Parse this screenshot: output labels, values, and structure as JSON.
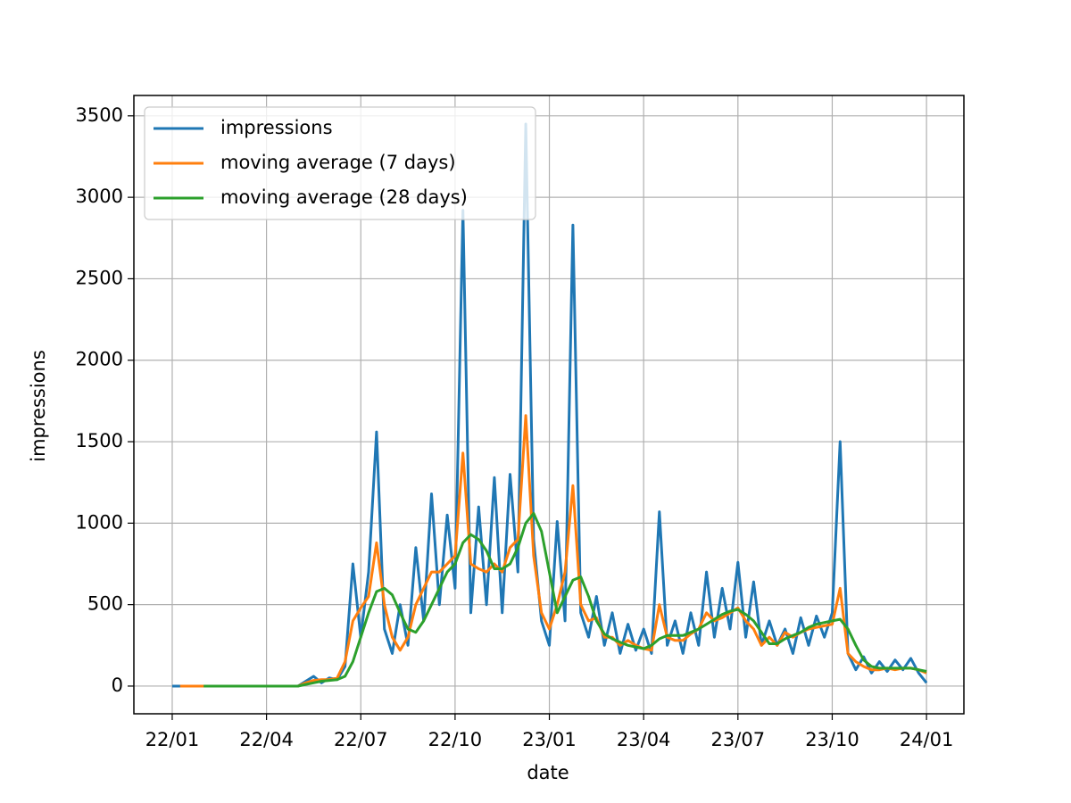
{
  "chart_data": {
    "type": "line",
    "xlabel": "date",
    "ylabel": "impressions",
    "x": [
      0,
      0.25,
      0.5,
      0.75,
      1,
      1.25,
      1.5,
      1.75,
      2,
      2.25,
      2.5,
      2.75,
      3,
      3.25,
      3.5,
      3.75,
      4,
      4.25,
      4.5,
      4.75,
      5,
      5.25,
      5.5,
      5.75,
      6,
      6.25,
      6.5,
      6.75,
      7,
      7.25,
      7.5,
      7.75,
      8,
      8.25,
      8.5,
      8.75,
      9,
      9.25,
      9.5,
      9.75,
      10,
      10.25,
      10.5,
      10.75,
      11,
      11.25,
      11.5,
      11.75,
      12,
      12.25,
      12.5,
      12.75,
      13,
      13.25,
      13.5,
      13.75,
      14,
      14.25,
      14.5,
      14.75,
      15,
      15.25,
      15.5,
      15.75,
      16,
      16.25,
      16.5,
      16.75,
      17,
      17.25,
      17.5,
      17.75,
      18,
      18.25,
      18.5,
      18.75,
      19,
      19.25,
      19.5,
      19.75,
      20,
      20.25,
      20.5,
      20.75,
      21,
      21.25,
      21.5,
      21.75,
      22,
      22.25,
      22.5,
      22.75,
      23,
      23.25,
      23.5,
      23.75,
      24
    ],
    "series": [
      {
        "name": "impressions",
        "color": "#1f77b4",
        "values": [
          0,
          0,
          0,
          0,
          0,
          0,
          0,
          0,
          0,
          0,
          0,
          0,
          0,
          0,
          0,
          0,
          0,
          30,
          60,
          20,
          50,
          40,
          120,
          750,
          300,
          700,
          1560,
          350,
          200,
          500,
          250,
          850,
          400,
          1180,
          500,
          1050,
          600,
          2920,
          450,
          1100,
          500,
          1280,
          450,
          1300,
          700,
          3450,
          900,
          400,
          250,
          1010,
          400,
          2830,
          450,
          300,
          550,
          250,
          450,
          200,
          380,
          220,
          350,
          200,
          1070,
          250,
          400,
          200,
          450,
          250,
          700,
          300,
          600,
          350,
          760,
          300,
          640,
          250,
          400,
          250,
          350,
          200,
          420,
          250,
          430,
          300,
          450,
          1500,
          200,
          100,
          180,
          80,
          150,
          90,
          160,
          100,
          170,
          80,
          20
        ]
      },
      {
        "name": "moving average (7 days)",
        "color": "#ff7f0e",
        "values": [
          null,
          0,
          0,
          0,
          0,
          0,
          0,
          0,
          0,
          0,
          0,
          0,
          0,
          0,
          0,
          0,
          0,
          20,
          35,
          40,
          40,
          50,
          150,
          400,
          480,
          550,
          880,
          500,
          300,
          220,
          300,
          500,
          600,
          700,
          700,
          750,
          800,
          1430,
          750,
          720,
          700,
          750,
          700,
          850,
          900,
          1660,
          800,
          450,
          350,
          500,
          700,
          1230,
          500,
          400,
          420,
          300,
          300,
          250,
          280,
          250,
          230,
          220,
          500,
          300,
          280,
          280,
          320,
          350,
          450,
          400,
          420,
          450,
          480,
          400,
          350,
          250,
          300,
          250,
          330,
          300,
          330,
          350,
          360,
          370,
          380,
          600,
          200,
          150,
          120,
          100,
          100,
          110,
          100,
          110,
          110,
          100,
          80
        ]
      },
      {
        "name": "moving average (28 days)",
        "color": "#2ca02c",
        "values": [
          null,
          null,
          null,
          null,
          0,
          0,
          0,
          0,
          0,
          0,
          0,
          0,
          0,
          0,
          0,
          0,
          0,
          10,
          20,
          30,
          35,
          40,
          60,
          150,
          300,
          450,
          580,
          600,
          560,
          450,
          350,
          330,
          400,
          500,
          600,
          700,
          750,
          880,
          930,
          900,
          830,
          720,
          720,
          750,
          850,
          1000,
          1060,
          950,
          700,
          450,
          550,
          650,
          670,
          550,
          400,
          320,
          290,
          270,
          250,
          240,
          230,
          250,
          290,
          310,
          310,
          310,
          330,
          350,
          380,
          410,
          440,
          460,
          470,
          440,
          400,
          330,
          260,
          260,
          290,
          310,
          330,
          360,
          380,
          390,
          400,
          410,
          350,
          250,
          160,
          120,
          110,
          110,
          110,
          110,
          110,
          100,
          90
        ]
      }
    ],
    "xlim": [
      -1.22,
      25.19
    ],
    "xticks": [
      {
        "value": 0,
        "label": "22/01"
      },
      {
        "value": 3,
        "label": "22/04"
      },
      {
        "value": 6,
        "label": "22/07"
      },
      {
        "value": 9,
        "label": "22/10"
      },
      {
        "value": 12,
        "label": "23/01"
      },
      {
        "value": 15,
        "label": "23/04"
      },
      {
        "value": 18,
        "label": "23/07"
      },
      {
        "value": 21,
        "label": "23/10"
      },
      {
        "value": 24,
        "label": "24/01"
      }
    ],
    "ylim": [
      -170,
      3625
    ],
    "yticks": [
      0,
      500,
      1000,
      1500,
      2000,
      2500,
      3000,
      3500
    ],
    "grid": true,
    "legend": "upper left"
  }
}
